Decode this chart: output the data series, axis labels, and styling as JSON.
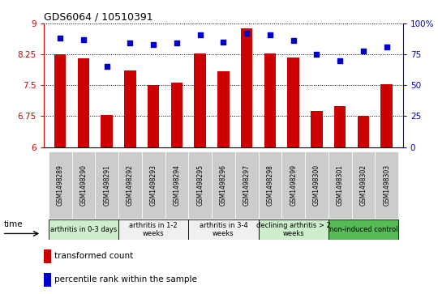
{
  "title": "GDS6064 / 10510391",
  "samples": [
    "GSM1498289",
    "GSM1498290",
    "GSM1498291",
    "GSM1498292",
    "GSM1498293",
    "GSM1498294",
    "GSM1498295",
    "GSM1498296",
    "GSM1498297",
    "GSM1498298",
    "GSM1498299",
    "GSM1498300",
    "GSM1498301",
    "GSM1498302",
    "GSM1498303"
  ],
  "bar_values": [
    8.25,
    8.15,
    6.78,
    7.85,
    7.5,
    7.57,
    8.28,
    7.84,
    8.88,
    8.28,
    8.18,
    6.88,
    7.0,
    6.75,
    7.53
  ],
  "dot_values": [
    88,
    87,
    65,
    84,
    83,
    84,
    91,
    85,
    92,
    91,
    86,
    75,
    70,
    78,
    81
  ],
  "bar_color": "#cc0000",
  "dot_color": "#0000cc",
  "ylim_left": [
    6,
    9
  ],
  "ylim_right": [
    0,
    100
  ],
  "yticks_left": [
    6,
    6.75,
    7.5,
    8.25,
    9
  ],
  "ytick_labels_left": [
    "6",
    "6.75",
    "7.5",
    "8.25",
    "9"
  ],
  "yticks_right": [
    0,
    25,
    50,
    75,
    100
  ],
  "ytick_labels_right": [
    "0",
    "25",
    "50",
    "75",
    "100%"
  ],
  "groups": [
    {
      "label": "arthritis in 0-3 days",
      "start": 0,
      "end": 3,
      "color": "#cceecc"
    },
    {
      "label": "arthritis in 1-2\nweeks",
      "start": 3,
      "end": 6,
      "color": "#f0f0f0"
    },
    {
      "label": "arthritis in 3-4\nweeks",
      "start": 6,
      "end": 9,
      "color": "#f0f0f0"
    },
    {
      "label": "declining arthritis > 2\nweeks",
      "start": 9,
      "end": 12,
      "color": "#cceecc"
    },
    {
      "label": "non-induced control",
      "start": 12,
      "end": 15,
      "color": "#55bb55"
    }
  ],
  "time_label": "time",
  "legend_bar_label": "transformed count",
  "legend_dot_label": "percentile rank within the sample",
  "background_color": "#ffffff",
  "axis_color_left": "#cc0000",
  "axis_color_right": "#0000cc",
  "bar_bottom": 6
}
